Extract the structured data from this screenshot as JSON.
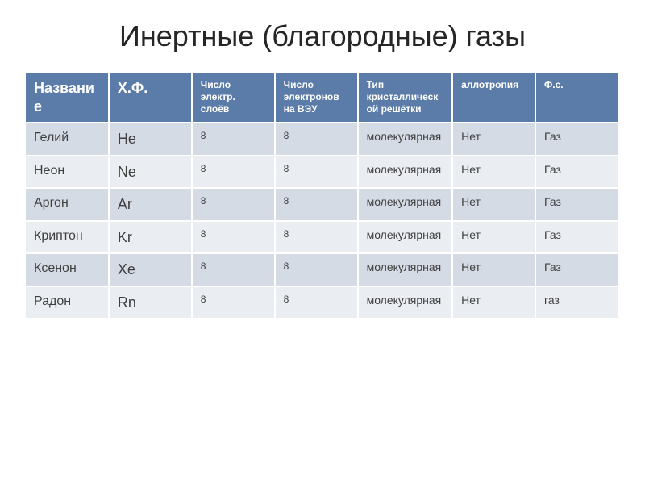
{
  "title": {
    "text": "Инертные (благородные) газы",
    "fontsize": 36,
    "color": "#262626"
  },
  "table": {
    "header_bg": "#5b7ca8",
    "header_color": "#ffffff",
    "row_bg_even": "#d4dbe4",
    "row_bg_odd": "#eaedf2",
    "cell_color": "#404040",
    "border_color": "#ffffff",
    "columns": [
      {
        "label": "Название",
        "width": "14%",
        "fontsize": 18
      },
      {
        "label": "Х.Ф.",
        "width": "14%",
        "fontsize": 18
      },
      {
        "label": "Число электр. слоёв",
        "width": "14%",
        "fontsize": 12
      },
      {
        "label": "Число электронов на ВЭУ",
        "width": "14%",
        "fontsize": 12
      },
      {
        "label": "Тип кристаллической решётки",
        "width": "16%",
        "fontsize": 12
      },
      {
        "label": "аллотропия",
        "width": "14%",
        "fontsize": 12
      },
      {
        "label": "Ф.с.",
        "width": "14%",
        "fontsize": 12
      }
    ],
    "rows": [
      [
        "Гелий",
        "He",
        "8",
        "8",
        "молекулярная",
        "Нет",
        "Газ"
      ],
      [
        "Неон",
        "Ne",
        "8",
        "8",
        "молекулярная",
        "Нет",
        "Газ"
      ],
      [
        "Аргон",
        "Ar",
        "8",
        "8",
        "молекулярная",
        "Нет",
        "Газ"
      ],
      [
        "Криптон",
        "Kr",
        "8",
        "8",
        "молекулярная",
        "Нет",
        "Газ"
      ],
      [
        "Ксенон",
        "Xe",
        "8",
        "8",
        "молекулярная",
        "Нет",
        "Газ"
      ],
      [
        "Радон",
        "Rn",
        "8",
        "8",
        "молекулярная",
        "Нет",
        "газ"
      ]
    ],
    "cell_fontsize_name": 16,
    "cell_fontsize_formula": 18,
    "cell_fontsize_small": 12,
    "cell_fontsize_regular": 14
  }
}
